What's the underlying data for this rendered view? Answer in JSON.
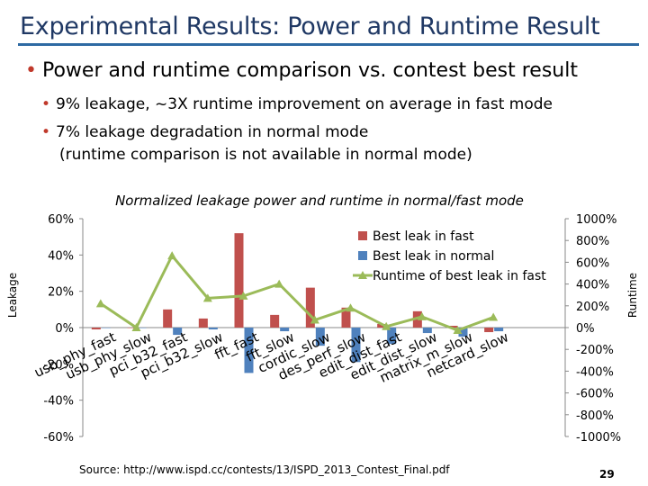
{
  "slide": {
    "title": "Experimental Results: Power and Runtime Result",
    "bullet_main": "Power and runtime comparison vs. contest best result",
    "sub_bullets": [
      "9% leakage, ~3X runtime improvement on average in fast mode",
      "7% leakage degradation in normal mode"
    ],
    "sub_note": "(runtime comparison is not available in normal mode)",
    "source": "Source: http://www.ispd.cc/contests/13/ISPD_2013_Contest_Final.pdf",
    "page_number": "29"
  },
  "chart_data": {
    "type": "bar",
    "title": "Normalized leakage power and runtime in normal/fast mode",
    "ylabel": "Leakage",
    "y2label": "Runtime",
    "ylim": [
      -60,
      60
    ],
    "y2lim": [
      -1000,
      1000
    ],
    "y_ticks": [
      "60%",
      "40%",
      "20%",
      "0%",
      "-20%",
      "-40%",
      "-60%"
    ],
    "y2_ticks": [
      "1000%",
      "800%",
      "600%",
      "400%",
      "200%",
      "0%",
      "-200%",
      "-400%",
      "-600%",
      "-800%",
      "-1000%"
    ],
    "categories": [
      "usb_phy_fast",
      "usb_phy_slow",
      "pci_b32_fast",
      "pci_b32_slow",
      "fft_fast",
      "fft_slow",
      "cordic_slow",
      "des_perf_slow",
      "edit_dist_fast",
      "edit_dist_slow",
      "matrix_m_slow",
      "netcard_slow"
    ],
    "series": [
      {
        "name": "Best leak in fast",
        "type": "bar",
        "axis": "left",
        "color": "#c0504d",
        "values": [
          -1,
          0,
          10,
          5,
          52,
          7,
          22,
          11,
          2,
          9,
          1,
          -2.5
        ]
      },
      {
        "name": "Best leak in normal",
        "type": "bar",
        "axis": "left",
        "color": "#4f81bd",
        "values": [
          0,
          0,
          -4,
          -1,
          -25,
          -2,
          -10,
          -19,
          -9,
          -3,
          -5,
          -2
        ]
      },
      {
        "name": "Runtime of best leak in fast",
        "type": "line",
        "axis": "right",
        "color": "#9bbb59",
        "values": [
          220,
          0,
          660,
          270,
          290,
          400,
          70,
          180,
          10,
          100,
          -25,
          95
        ]
      }
    ],
    "legend_position": "top-right",
    "grid": false
  }
}
